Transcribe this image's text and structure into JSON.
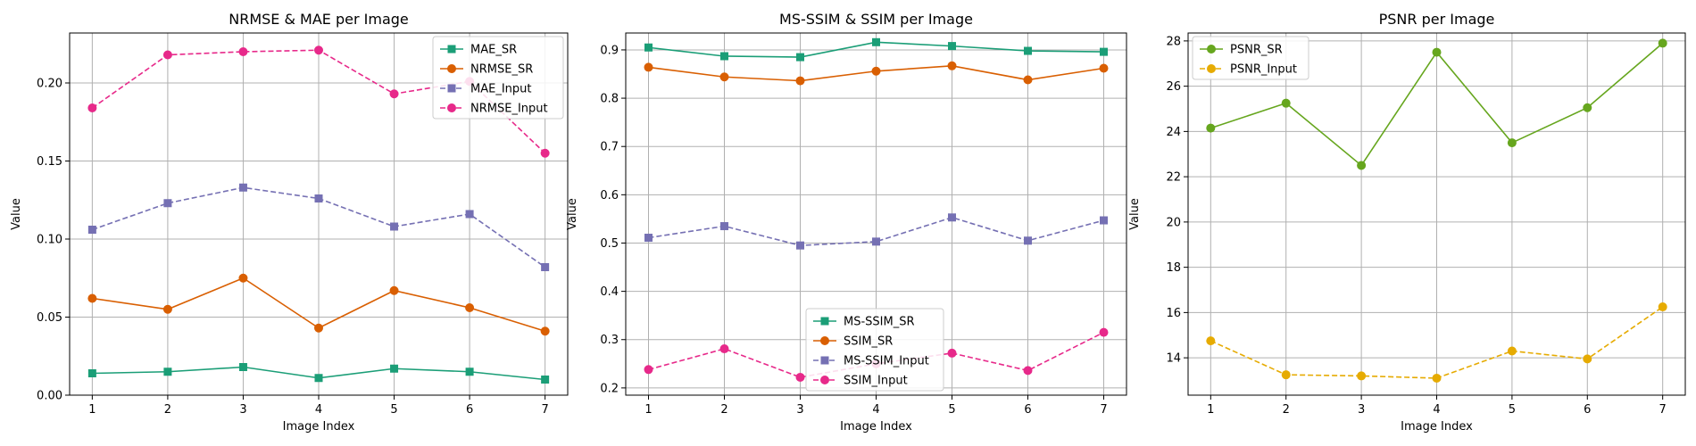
{
  "chart_data": [
    {
      "type": "line",
      "title": "NRMSE & MAE per Image",
      "xlabel": "Image Index",
      "ylabel": "Value",
      "x": [
        1,
        2,
        3,
        4,
        5,
        6,
        7
      ],
      "xlim": [
        0.7,
        7.3
      ],
      "ylim": [
        0,
        0.232
      ],
      "yticks": [
        0.0,
        0.05,
        0.1,
        0.15,
        0.2
      ],
      "ytick_labels": [
        "0.00",
        "0.05",
        "0.10",
        "0.15",
        "0.20"
      ],
      "grid": true,
      "legend_position": "top-right",
      "series": [
        {
          "name": "MAE_SR",
          "color": "#1b9e77",
          "linestyle": "solid",
          "marker": "square",
          "values": [
            0.014,
            0.015,
            0.018,
            0.011,
            0.017,
            0.015,
            0.01
          ]
        },
        {
          "name": "NRMSE_SR",
          "color": "#d95f02",
          "linestyle": "solid",
          "marker": "circle",
          "values": [
            0.062,
            0.055,
            0.075,
            0.043,
            0.067,
            0.056,
            0.041
          ]
        },
        {
          "name": "MAE_Input",
          "color": "#7570b3",
          "linestyle": "dashed",
          "marker": "square",
          "values": [
            0.106,
            0.123,
            0.133,
            0.126,
            0.108,
            0.116,
            0.082
          ]
        },
        {
          "name": "NRMSE_Input",
          "color": "#e7298a",
          "linestyle": "dashed",
          "marker": "circle",
          "values": [
            0.184,
            0.218,
            0.22,
            0.221,
            0.193,
            0.201,
            0.155
          ]
        }
      ]
    },
    {
      "type": "line",
      "title": "MS-SSIM & SSIM per Image",
      "xlabel": "Image Index",
      "ylabel": "Value",
      "x": [
        1,
        2,
        3,
        4,
        5,
        6,
        7
      ],
      "xlim": [
        0.7,
        7.3
      ],
      "ylim": [
        0.185,
        0.935
      ],
      "yticks": [
        0.2,
        0.3,
        0.4,
        0.5,
        0.6,
        0.7,
        0.8,
        0.9
      ],
      "ytick_labels": [
        "0.2",
        "0.3",
        "0.4",
        "0.5",
        "0.6",
        "0.7",
        "0.8",
        "0.9"
      ],
      "grid": true,
      "legend_position": "bottom-center",
      "series": [
        {
          "name": "MS-SSIM_SR",
          "color": "#1b9e77",
          "linestyle": "solid",
          "marker": "square",
          "values": [
            0.905,
            0.887,
            0.885,
            0.916,
            0.908,
            0.898,
            0.896
          ]
        },
        {
          "name": "SSIM_SR",
          "color": "#d95f02",
          "linestyle": "solid",
          "marker": "circle",
          "values": [
            0.864,
            0.844,
            0.836,
            0.856,
            0.867,
            0.838,
            0.862
          ]
        },
        {
          "name": "MS-SSIM_Input",
          "color": "#7570b3",
          "linestyle": "dashed",
          "marker": "square",
          "values": [
            0.511,
            0.535,
            0.495,
            0.503,
            0.553,
            0.505,
            0.547
          ]
        },
        {
          "name": "SSIM_Input",
          "color": "#e7298a",
          "linestyle": "dashed",
          "marker": "circle",
          "values": [
            0.238,
            0.281,
            0.222,
            0.25,
            0.272,
            0.236,
            0.315
          ]
        }
      ]
    },
    {
      "type": "line",
      "title": "PSNR per Image",
      "xlabel": "Image Index",
      "ylabel": "Value",
      "x": [
        1,
        2,
        3,
        4,
        5,
        6,
        7
      ],
      "xlim": [
        0.7,
        7.3
      ],
      "ylim": [
        12.35,
        28.35
      ],
      "yticks": [
        14,
        16,
        18,
        20,
        22,
        24,
        26,
        28
      ],
      "ytick_labels": [
        "14",
        "16",
        "18",
        "20",
        "22",
        "24",
        "26",
        "28"
      ],
      "grid": true,
      "legend_position": "top-left",
      "series": [
        {
          "name": "PSNR_SR",
          "color": "#66a61e",
          "linestyle": "solid",
          "marker": "circle",
          "values": [
            24.15,
            25.25,
            22.5,
            27.5,
            23.5,
            25.05,
            27.9
          ]
        },
        {
          "name": "PSNR_Input",
          "color": "#e6ab02",
          "linestyle": "dashed",
          "marker": "circle",
          "values": [
            14.75,
            13.25,
            13.2,
            13.1,
            14.3,
            13.95,
            16.25
          ]
        }
      ]
    }
  ]
}
